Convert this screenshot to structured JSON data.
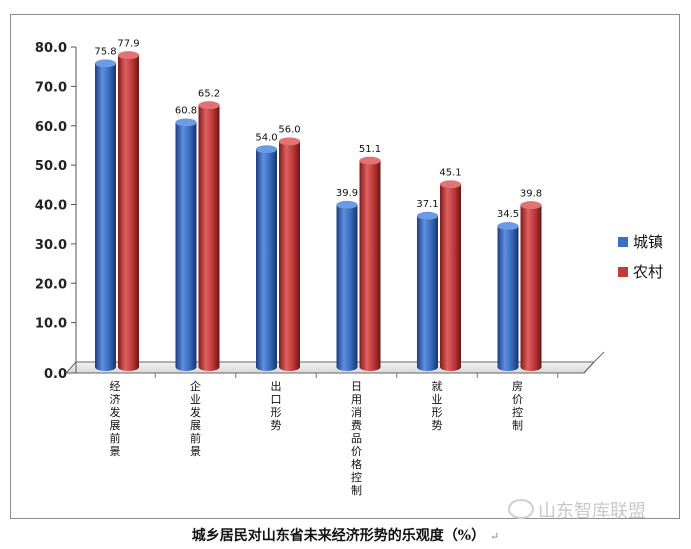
{
  "caption": "城乡居民对山东省未来经济形势的乐观度（%）",
  "caption_mark": "↵",
  "watermark": "山东智库联盟",
  "chart_data": {
    "type": "bar",
    "title": "",
    "xlabel": "",
    "ylabel": "",
    "ylim": [
      0,
      80
    ],
    "yticks": [
      "0.0",
      "10.0",
      "20.0",
      "30.0",
      "40.0",
      "50.0",
      "60.0",
      "70.0",
      "80.0"
    ],
    "categories": [
      [
        "经",
        "济",
        "发",
        "展",
        "前",
        "景"
      ],
      [
        "企",
        "业",
        "发",
        "展",
        "前",
        "景"
      ],
      [
        "出",
        "口",
        "形",
        "势"
      ],
      [
        "日",
        "用",
        "消",
        "费",
        "品",
        "价",
        "格",
        "控",
        "制"
      ],
      [
        "就",
        "业",
        "形",
        "势"
      ],
      [
        "房",
        "价",
        "控",
        "制"
      ]
    ],
    "series": [
      {
        "name": "城镇",
        "color": "#3a6fc4",
        "values": [
          75.8,
          60.8,
          54.0,
          39.9,
          37.1,
          34.5
        ],
        "labels": [
          "75.8",
          "60.8",
          "54.0",
          "39.9",
          "37.1",
          "34.5"
        ]
      },
      {
        "name": "农村",
        "color": "#c23b3b",
        "values": [
          77.9,
          65.2,
          56.0,
          51.1,
          45.1,
          39.8
        ],
        "labels": [
          "77.9",
          "65.2",
          "56.0",
          "51.1",
          "45.1",
          "39.8"
        ]
      }
    ],
    "legend": "right",
    "grid": false
  }
}
